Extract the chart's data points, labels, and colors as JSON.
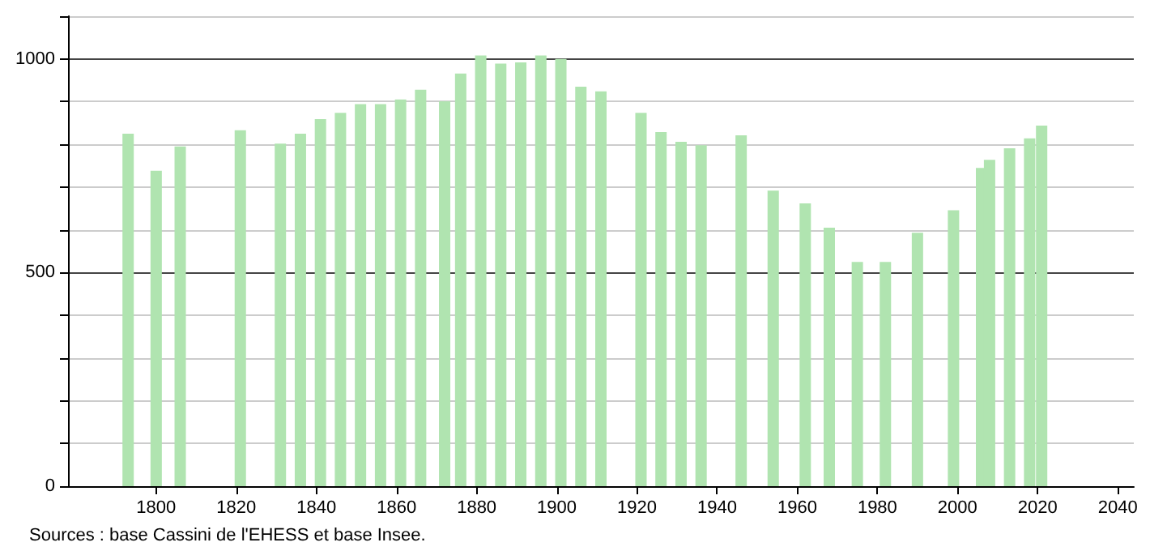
{
  "chart_data": {
    "type": "bar",
    "annotations": [
      "Sources : base Cassini de l'EHESS et base Insee."
    ],
    "x": [
      1793,
      1800,
      1806,
      1821,
      1831,
      1836,
      1841,
      1846,
      1851,
      1856,
      1861,
      1866,
      1872,
      1876,
      1881,
      1886,
      1891,
      1896,
      1901,
      1906,
      1911,
      1921,
      1926,
      1931,
      1936,
      1946,
      1954,
      1962,
      1968,
      1975,
      1982,
      1990,
      1999,
      2006,
      2008,
      2013,
      2018,
      2021
    ],
    "values": [
      825,
      738,
      795,
      833,
      802,
      825,
      859,
      874,
      894,
      894,
      905,
      928,
      901,
      966,
      1008,
      989,
      992,
      1008,
      1000,
      935,
      924,
      874,
      829,
      806,
      798,
      821,
      692,
      662,
      605,
      525,
      525,
      593,
      646,
      745,
      764,
      791,
      814,
      844
    ],
    "color": "#b0e4b0",
    "xlim": [
      1778,
      2044
    ],
    "xticks": [
      1800,
      1820,
      1840,
      1860,
      1880,
      1900,
      1920,
      1940,
      1960,
      1980,
      2000,
      2020,
      2040
    ],
    "ylim": [
      0,
      1100
    ],
    "yticks": [
      0,
      {
        "value": 100,
        "label": null
      },
      {
        "value": 200,
        "label": null
      },
      {
        "value": 300,
        "label": null
      },
      {
        "value": 400,
        "label": null
      },
      500,
      {
        "value": 600,
        "label": null
      },
      {
        "value": 700,
        "label": null
      },
      {
        "value": 800,
        "label": null
      },
      {
        "value": 900,
        "label": null
      },
      1000,
      {
        "value": 1100,
        "label": null
      }
    ],
    "grid": "y"
  }
}
